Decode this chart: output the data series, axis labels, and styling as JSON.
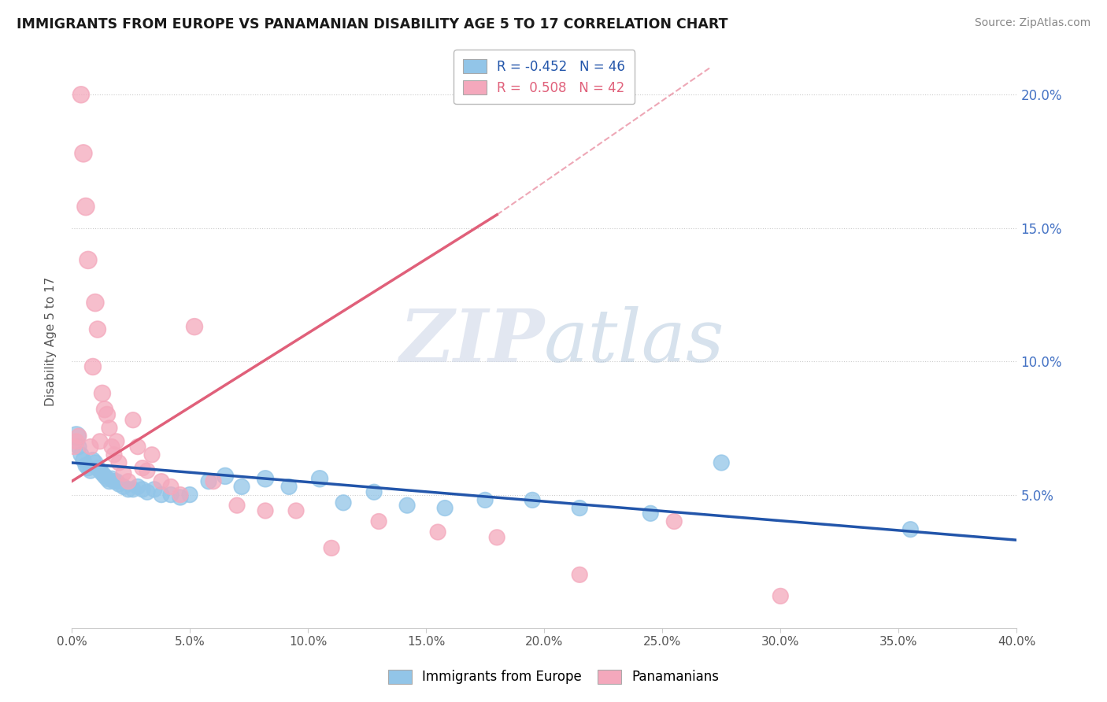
{
  "title": "IMMIGRANTS FROM EUROPE VS PANAMANIAN DISABILITY AGE 5 TO 17 CORRELATION CHART",
  "source": "Source: ZipAtlas.com",
  "ylabel": "Disability Age 5 to 17",
  "xmin": 0.0,
  "xmax": 0.4,
  "ymin": 0.0,
  "ymax": 0.215,
  "yticks": [
    0.05,
    0.1,
    0.15,
    0.2
  ],
  "ytick_labels": [
    "5.0%",
    "10.0%",
    "15.0%",
    "20.0%"
  ],
  "xticks": [
    0.0,
    0.05,
    0.1,
    0.15,
    0.2,
    0.25,
    0.3,
    0.35,
    0.4
  ],
  "blue_R": "-0.452",
  "blue_N": "46",
  "pink_R": "0.508",
  "pink_N": "42",
  "blue_color": "#92C5E8",
  "pink_color": "#F4A8BC",
  "blue_line_color": "#2255AA",
  "pink_line_color": "#E0607A",
  "legend_blue_label": "Immigrants from Europe",
  "legend_pink_label": "Panamanians",
  "watermark_zip": "ZIP",
  "watermark_atlas": "atlas",
  "blue_line_x0": 0.0,
  "blue_line_y0": 0.062,
  "blue_line_x1": 0.4,
  "blue_line_y1": 0.033,
  "pink_line_x0": 0.0,
  "pink_line_y0": 0.055,
  "pink_line_x1": 0.18,
  "pink_line_y1": 0.155,
  "pink_line_dash_x1": 0.27,
  "pink_line_dash_y1": 0.21,
  "blue_dots_x": [
    0.002,
    0.003,
    0.004,
    0.005,
    0.006,
    0.007,
    0.008,
    0.009,
    0.01,
    0.011,
    0.012,
    0.013,
    0.014,
    0.015,
    0.016,
    0.017,
    0.018,
    0.019,
    0.02,
    0.022,
    0.024,
    0.026,
    0.028,
    0.03,
    0.032,
    0.035,
    0.038,
    0.042,
    0.046,
    0.05,
    0.058,
    0.065,
    0.072,
    0.082,
    0.092,
    0.105,
    0.115,
    0.128,
    0.142,
    0.158,
    0.175,
    0.195,
    0.215,
    0.245,
    0.275,
    0.355
  ],
  "blue_dots_y": [
    0.072,
    0.068,
    0.065,
    0.063,
    0.061,
    0.06,
    0.059,
    0.063,
    0.062,
    0.06,
    0.059,
    0.058,
    0.057,
    0.056,
    0.055,
    0.056,
    0.055,
    0.055,
    0.054,
    0.053,
    0.052,
    0.052,
    0.053,
    0.052,
    0.051,
    0.052,
    0.05,
    0.05,
    0.049,
    0.05,
    0.055,
    0.057,
    0.053,
    0.056,
    0.053,
    0.056,
    0.047,
    0.051,
    0.046,
    0.045,
    0.048,
    0.048,
    0.045,
    0.043,
    0.062,
    0.037
  ],
  "blue_dots_size": [
    120,
    80,
    80,
    80,
    80,
    80,
    80,
    80,
    80,
    80,
    80,
    80,
    80,
    80,
    80,
    80,
    80,
    80,
    80,
    80,
    80,
    80,
    80,
    80,
    80,
    80,
    80,
    80,
    80,
    80,
    80,
    90,
    80,
    90,
    80,
    90,
    80,
    80,
    80,
    80,
    80,
    80,
    80,
    80,
    80,
    80
  ],
  "pink_dots_x": [
    0.001,
    0.002,
    0.003,
    0.004,
    0.005,
    0.006,
    0.007,
    0.008,
    0.009,
    0.01,
    0.011,
    0.012,
    0.013,
    0.014,
    0.015,
    0.016,
    0.017,
    0.018,
    0.019,
    0.02,
    0.022,
    0.024,
    0.026,
    0.028,
    0.03,
    0.032,
    0.034,
    0.038,
    0.042,
    0.046,
    0.052,
    0.06,
    0.07,
    0.082,
    0.095,
    0.11,
    0.13,
    0.155,
    0.18,
    0.215,
    0.255,
    0.3
  ],
  "pink_dots_y": [
    0.068,
    0.07,
    0.072,
    0.2,
    0.178,
    0.158,
    0.138,
    0.068,
    0.098,
    0.122,
    0.112,
    0.07,
    0.088,
    0.082,
    0.08,
    0.075,
    0.068,
    0.065,
    0.07,
    0.062,
    0.058,
    0.055,
    0.078,
    0.068,
    0.06,
    0.059,
    0.065,
    0.055,
    0.053,
    0.05,
    0.113,
    0.055,
    0.046,
    0.044,
    0.044,
    0.03,
    0.04,
    0.036,
    0.034,
    0.02,
    0.04,
    0.012
  ],
  "pink_dots_size": [
    80,
    80,
    80,
    90,
    100,
    100,
    100,
    80,
    90,
    100,
    90,
    80,
    90,
    90,
    90,
    80,
    80,
    80,
    80,
    80,
    80,
    80,
    80,
    80,
    80,
    80,
    80,
    80,
    80,
    80,
    90,
    80,
    80,
    80,
    80,
    80,
    80,
    80,
    80,
    80,
    80,
    80
  ]
}
